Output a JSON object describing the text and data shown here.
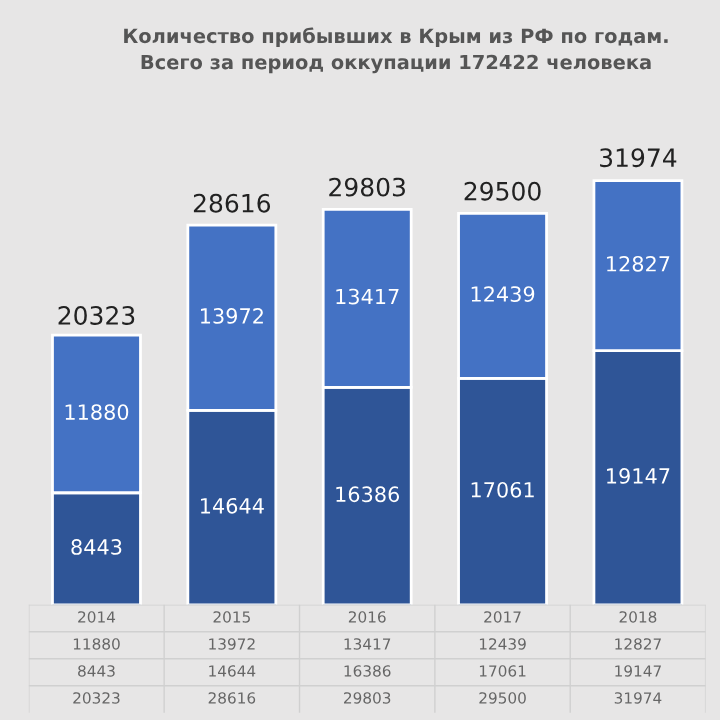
{
  "chart_data": {
    "type": "bar",
    "title": "Количество прибывших в Крым из РФ по годам.\nВсего за период оккупации 172422 человека",
    "categories": [
      "2014",
      "2015",
      "2016",
      "2017",
      "2018"
    ],
    "stacked": true,
    "series": [
      {
        "color": "#2f5597",
        "values": [
          8443,
          14644,
          16386,
          17061,
          19147
        ],
        "value_labels": [
          "8443",
          "14644",
          "16386",
          "17061",
          "19147"
        ]
      },
      {
        "color": "#4472c4",
        "values": [
          11880,
          13972,
          13417,
          12439,
          12827
        ],
        "value_labels": [
          "11880",
          "13972",
          "13417",
          "12439",
          "12827"
        ]
      }
    ],
    "totals": [
      "20323",
      "28616",
      "29803",
      "29500",
      "31974"
    ],
    "annotations": [
      "11880",
      "13972",
      "13417",
      "12439",
      "12827",
      "8443",
      "14644",
      "16386",
      "17061",
      "19147"
    ]
  }
}
